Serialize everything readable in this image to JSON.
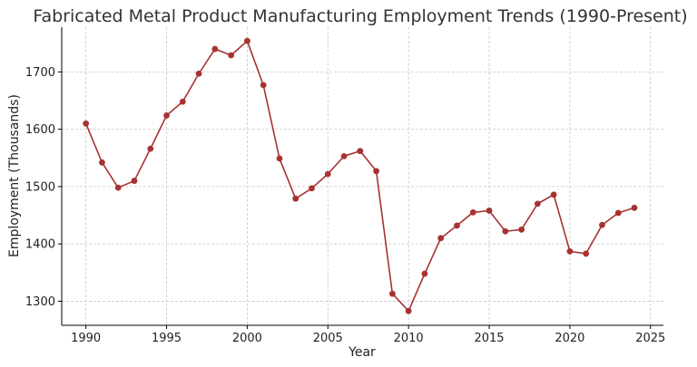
{
  "chart_data": {
    "type": "line",
    "title": "Fabricated Metal Product Manufacturing Employment Trends (1990-Present)",
    "xlabel": "Year",
    "ylabel": "Employment (Thousands)",
    "xlim": [
      1988.5,
      2025.8
    ],
    "ylim": [
      1258,
      1778
    ],
    "x_ticks": [
      1990,
      1995,
      2000,
      2005,
      2010,
      2015,
      2020,
      2025
    ],
    "y_ticks": [
      1300,
      1400,
      1500,
      1600,
      1700
    ],
    "grid": true,
    "series": [
      {
        "color": "#a83232",
        "marker": "circle",
        "x": [
          1990,
          1991,
          1992,
          1993,
          1994,
          1995,
          1996,
          1997,
          1998,
          1999,
          2000,
          2001,
          2002,
          2003,
          2004,
          2005,
          2006,
          2007,
          2008,
          2009,
          2010,
          2011,
          2012,
          2013,
          2014,
          2015,
          2016,
          2017,
          2018,
          2019,
          2020,
          2021,
          2022,
          2023,
          2024
        ],
        "y": [
          1610,
          1542,
          1498,
          1510,
          1566,
          1624,
          1648,
          1697,
          1740,
          1729,
          1754,
          1677,
          1549,
          1479,
          1497,
          1522,
          1553,
          1562,
          1527,
          1313,
          1283,
          1348,
          1410,
          1432,
          1455,
          1458,
          1422,
          1425,
          1470,
          1486,
          1387,
          1383,
          1433,
          1454,
          1463
        ]
      }
    ]
  }
}
